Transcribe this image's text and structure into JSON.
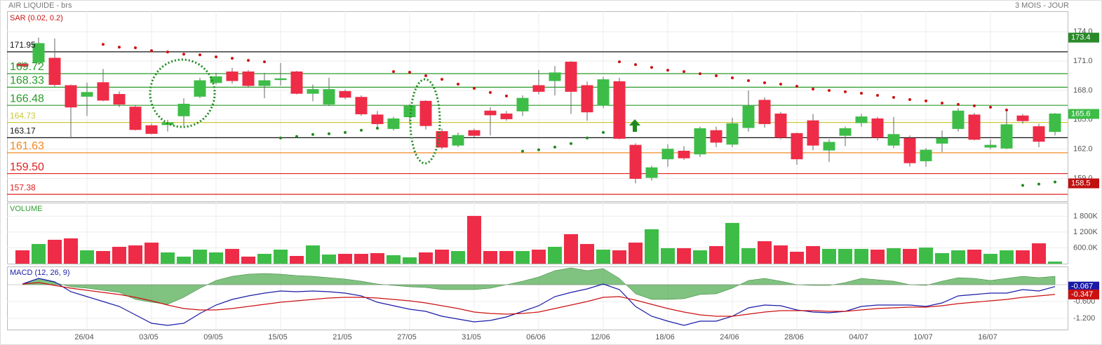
{
  "chart_data": {
    "type": "candlestick",
    "title": "AIR LIQUIDE - brs",
    "period": "3 MOIS - JOUR",
    "sar_label": "SAR (0.02, 0.2)",
    "volume_label": "VOLUME",
    "macd_label": "MACD (12, 26, 9)",
    "up_color": "#3dbd48",
    "down_color": "#ee2c47",
    "categories": [
      null,
      null,
      null,
      null,
      "26/04",
      null,
      null,
      null,
      "03/05",
      null,
      null,
      null,
      "09/05",
      null,
      null,
      null,
      "15/05",
      null,
      null,
      null,
      "21/05",
      null,
      null,
      null,
      "27/05",
      null,
      null,
      null,
      "31/05",
      null,
      null,
      null,
      "06/06",
      null,
      null,
      null,
      "12/06",
      null,
      null,
      null,
      "18/06",
      null,
      null,
      null,
      "24/06",
      null,
      null,
      null,
      "28/06",
      null,
      null,
      null,
      "04/07",
      null,
      null,
      null,
      "10/07",
      null,
      null,
      null,
      "16/07",
      null,
      null,
      null,
      null
    ],
    "open": [
      170.7,
      170.9,
      171.3,
      168.5,
      167.4,
      168.8,
      167.6,
      166.3,
      164.4,
      164.5,
      165.4,
      167.4,
      168.8,
      169.9,
      169.9,
      168.5,
      169.1,
      169.9,
      167.7,
      166.6,
      167.9,
      167.3,
      165.5,
      164.1,
      165.3,
      166.9,
      163.8,
      162.4,
      163.9,
      165.9,
      165.6,
      165.9,
      168.5,
      169.0,
      170.9,
      168.5,
      166.5,
      168.9,
      162.4,
      159.1,
      161.0,
      161.8,
      161.5,
      163.9,
      162.5,
      164.2,
      167.0,
      165.6,
      163.6,
      164.9,
      161.9,
      163.4,
      164.7,
      165.1,
      162.4,
      163.1,
      160.8,
      162.6,
      164.1,
      165.5,
      162.2,
      162.1,
      165.4,
      164.3,
      163.8
    ],
    "high": [
      170.9,
      173.4,
      173.3,
      168.6,
      168.8,
      170.2,
      167.9,
      166.5,
      164.6,
      165.0,
      167.2,
      169.3,
      169.8,
      170.3,
      170.1,
      169.8,
      170.8,
      170.0,
      168.6,
      169.3,
      168.1,
      167.5,
      165.9,
      165.3,
      166.6,
      167.0,
      164.1,
      163.7,
      164.1,
      166.3,
      165.9,
      167.5,
      170.1,
      170.5,
      171.0,
      168.9,
      169.4,
      169.3,
      162.6,
      160.3,
      162.5,
      162.3,
      164.3,
      164.3,
      165.2,
      168.0,
      167.3,
      165.8,
      163.7,
      165.6,
      163.0,
      164.3,
      165.6,
      165.3,
      165.3,
      163.4,
      162.1,
      163.9,
      166.2,
      165.7,
      163.0,
      165.9,
      165.6,
      164.6,
      165.7
    ],
    "low": [
      170.4,
      170.7,
      168.4,
      163.1,
      165.4,
      166.9,
      166.3,
      163.9,
      163.5,
      163.8,
      164.4,
      167.2,
      168.6,
      168.7,
      168.3,
      167.2,
      168.5,
      167.6,
      166.9,
      166.4,
      167.1,
      165.4,
      164.2,
      163.9,
      164.7,
      164.0,
      162.0,
      162.2,
      163.2,
      163.4,
      164.9,
      165.4,
      167.6,
      167.5,
      165.6,
      164.9,
      166.2,
      163.0,
      158.5,
      158.8,
      160.2,
      160.9,
      161.2,
      162.2,
      162.2,
      163.8,
      164.2,
      163.0,
      160.4,
      161.9,
      160.7,
      162.3,
      164.3,
      162.9,
      162.1,
      160.2,
      160.2,
      161.7,
      163.8,
      162.9,
      162.0,
      162.0,
      164.6,
      162.2,
      163.4
    ],
    "close": [
      170.5,
      172.8,
      168.6,
      166.3,
      167.8,
      167.0,
      166.6,
      164.0,
      163.6,
      164.7,
      166.6,
      169.0,
      169.4,
      169.0,
      168.5,
      169.0,
      169.2,
      167.7,
      168.1,
      168.1,
      167.3,
      165.6,
      164.6,
      165.1,
      166.4,
      164.4,
      162.2,
      163.4,
      163.4,
      165.5,
      165.1,
      167.2,
      167.9,
      169.8,
      167.9,
      165.8,
      169.1,
      163.1,
      159.0,
      160.1,
      162.0,
      161.1,
      164.1,
      162.7,
      164.6,
      166.4,
      164.6,
      163.2,
      161.0,
      162.4,
      162.7,
      164.1,
      165.3,
      163.2,
      163.5,
      160.6,
      161.9,
      163.1,
      165.9,
      163.0,
      162.4,
      164.5,
      164.9,
      162.8,
      165.6
    ],
    "sar": [
      null,
      null,
      null,
      null,
      null,
      172.71,
      172.43,
      172.36,
      172.07,
      171.93,
      171.71,
      171.64,
      171.43,
      171.29,
      171.07,
      170.93,
      163.14,
      163.29,
      163.5,
      163.57,
      163.71,
      163.93,
      164.14,
      169.93,
      169.86,
      169.5,
      169.14,
      168.64,
      168.21,
      167.79,
      167.43,
      161.79,
      161.93,
      162.21,
      162.57,
      163.14,
      163.71,
      170.93,
      170.64,
      170.36,
      170.07,
      169.93,
      169.71,
      169.5,
      169.29,
      169.0,
      168.79,
      168.64,
      168.43,
      168.14,
      168.0,
      167.86,
      167.71,
      167.5,
      167.29,
      167.07,
      166.93,
      166.71,
      166.57,
      166.43,
      166.29,
      166.0,
      158.29,
      158.43,
      158.64
    ],
    "ylim": [
      156.6,
      176.1
    ],
    "yticks": [
      {
        "value": 159,
        "label": "159.0"
      },
      {
        "value": 162,
        "label": "162.0"
      },
      {
        "value": 165,
        "label": "165.0"
      },
      {
        "value": 168,
        "label": "168.0"
      },
      {
        "value": 171,
        "label": "171.0"
      },
      {
        "value": 174,
        "label": "174.0"
      }
    ],
    "levels": [
      {
        "price": 171.95,
        "color": "#111111"
      },
      {
        "price": 169.72,
        "color": "#2a9a2a"
      },
      {
        "price": 168.33,
        "color": "#2a9a2a"
      },
      {
        "price": 166.48,
        "color": "#2a9a2a"
      },
      {
        "price": 164.73,
        "color": "#c9c93a"
      },
      {
        "price": 163.17,
        "color": "#111111"
      },
      {
        "price": 161.63,
        "color": "#f08a24"
      },
      {
        "price": {
          "value": 159.5,
          "label": "159.50"
        },
        "color": "#e02020"
      },
      {
        "price": 157.38,
        "color": "#e02020"
      }
    ],
    "volume": [
      507000,
      747000,
      907000,
      960000,
      507000,
      480000,
      640000,
      693000,
      800000,
      427000,
      267000,
      533000,
      427000,
      560000,
      267000,
      373000,
      533000,
      293000,
      693000,
      347000,
      373000,
      373000,
      400000,
      320000,
      240000,
      427000,
      533000,
      480000,
      1813000,
      480000,
      480000,
      480000,
      533000,
      640000,
      1120000,
      747000,
      533000,
      507000,
      800000,
      1307000,
      587000,
      587000,
      507000,
      667000,
      1547000,
      587000,
      853000,
      693000,
      453000,
      667000,
      560000,
      560000,
      560000,
      533000,
      587000,
      560000,
      613000,
      400000,
      507000,
      533000,
      373000,
      507000,
      507000,
      773000,
      80000
    ],
    "volume_ylim": [
      0,
      2290000
    ],
    "volume_yticks": [
      {
        "value": 600000,
        "label": "600.0K"
      },
      {
        "value": 1200000,
        "label": "1 200K"
      },
      {
        "value": 1800000,
        "label": "1 800K"
      }
    ],
    "macd_ylim": [
      -1.6,
      0.6
    ],
    "macd_yticks": [
      {
        "value": -0.6,
        "label": "-0.600"
      },
      {
        "value": -1.2,
        "label": "-1.200"
      }
    ],
    "macd_series": [
      {
        "name": "MACD",
        "color": "#1a1aa8",
        "values": [
          0.025,
          0.225,
          0.1,
          -0.25,
          -0.425,
          -0.6,
          -0.775,
          -1.075,
          -1.375,
          -1.45,
          -1.375,
          -1.025,
          -0.725,
          -0.525,
          -0.4,
          -0.3,
          -0.225,
          -0.25,
          -0.225,
          -0.25,
          -0.3,
          -0.4,
          -0.625,
          -0.75,
          -0.875,
          -0.95,
          -1.125,
          -1.225,
          -1.325,
          -1.275,
          -1.15,
          -0.95,
          -0.75,
          -0.425,
          -0.275,
          -0.15,
          0.025,
          -0.175,
          -0.775,
          -1.125,
          -1.3,
          -1.45,
          -1.3,
          -1.3,
          -1.125,
          -0.825,
          -0.725,
          -0.75,
          -0.9,
          -0.975,
          -1.0,
          -0.95,
          -0.775,
          -0.725,
          -0.725,
          -0.725,
          -0.775,
          -0.65,
          -0.4,
          -0.35,
          -0.3,
          -0.3,
          -0.175,
          -0.225,
          -0.067
        ]
      },
      {
        "name": "Signal",
        "color": "#cc1111",
        "values": [
          0.025,
          0.075,
          -0.025,
          -0.125,
          -0.2,
          -0.275,
          -0.35,
          -0.45,
          -0.575,
          -0.725,
          -0.85,
          -0.9,
          -0.9,
          -0.85,
          -0.775,
          -0.7,
          -0.625,
          -0.575,
          -0.525,
          -0.475,
          -0.45,
          -0.45,
          -0.475,
          -0.525,
          -0.575,
          -0.65,
          -0.75,
          -0.85,
          -0.975,
          -1.025,
          -1.05,
          -1.025,
          -0.975,
          -0.85,
          -0.725,
          -0.6,
          -0.45,
          -0.425,
          -0.55,
          -0.7,
          -0.85,
          -0.975,
          -1.075,
          -1.125,
          -1.125,
          -1.05,
          -0.975,
          -0.925,
          -0.925,
          -0.925,
          -0.95,
          -0.95,
          -0.9,
          -0.85,
          -0.825,
          -0.8,
          -0.8,
          -0.75,
          -0.675,
          -0.625,
          -0.575,
          -0.525,
          -0.45,
          -0.4,
          -0.347
        ]
      }
    ],
    "histogram": {
      "color": "#4aa84a",
      "values": [
        0,
        0.225,
        0.075,
        -0.075,
        -0.125,
        -0.2,
        -0.275,
        -0.525,
        -0.625,
        -0.7,
        -0.45,
        -0.125,
        0.15,
        0.3,
        0.375,
        0.4,
        0.375,
        0.325,
        0.3,
        0.25,
        0.2,
        0.125,
        0.025,
        -0.025,
        -0.075,
        -0.1,
        -0.175,
        -0.175,
        -0.175,
        -0.125,
        0,
        0.125,
        0.275,
        0.5,
        0.6,
        0.5,
        0.575,
        0.225,
        -0.325,
        -0.525,
        -0.525,
        -0.5,
        -0.35,
        -0.325,
        -0.125,
        0.15,
        0.225,
        0.125,
        0,
        -0.025,
        -0.025,
        0.075,
        0.225,
        0.175,
        0.125,
        0,
        -0.025,
        0.125,
        0.25,
        0.225,
        0.15,
        0.225,
        0.3,
        0.25,
        0.3
      ]
    }
  }
}
